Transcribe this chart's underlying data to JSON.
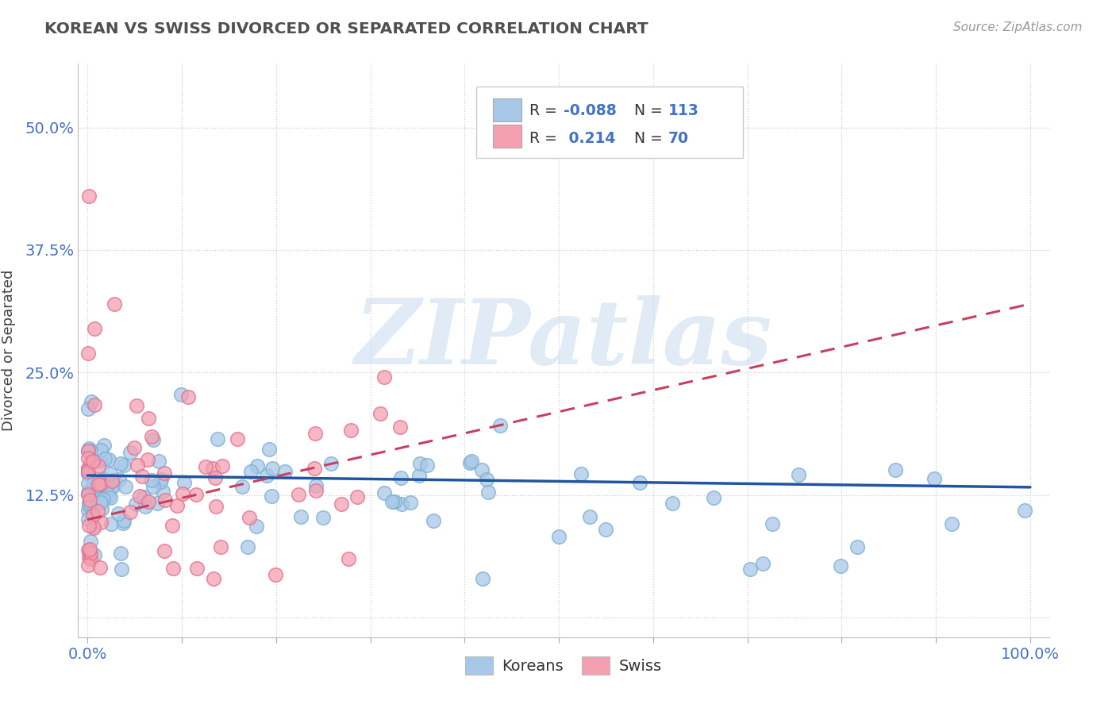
{
  "title": "KOREAN VS SWISS DIVORCED OR SEPARATED CORRELATION CHART",
  "source_text": "Source: ZipAtlas.com",
  "ylabel": "Divorced or Separated",
  "blue_color": "#A8C8E8",
  "pink_color": "#F4A0B0",
  "blue_edge_color": "#7AAFD0",
  "pink_edge_color": "#E07090",
  "blue_line_color": "#2055A0",
  "pink_line_color": "#C84060",
  "axis_label_color": "#4472C4",
  "title_color": "#505050",
  "grid_color": "#CCCCCC",
  "background_color": "#FFFFFF",
  "watermark": "ZIPatlas",
  "source_color": "#999999",
  "N_korean": 113,
  "N_swiss": 70
}
